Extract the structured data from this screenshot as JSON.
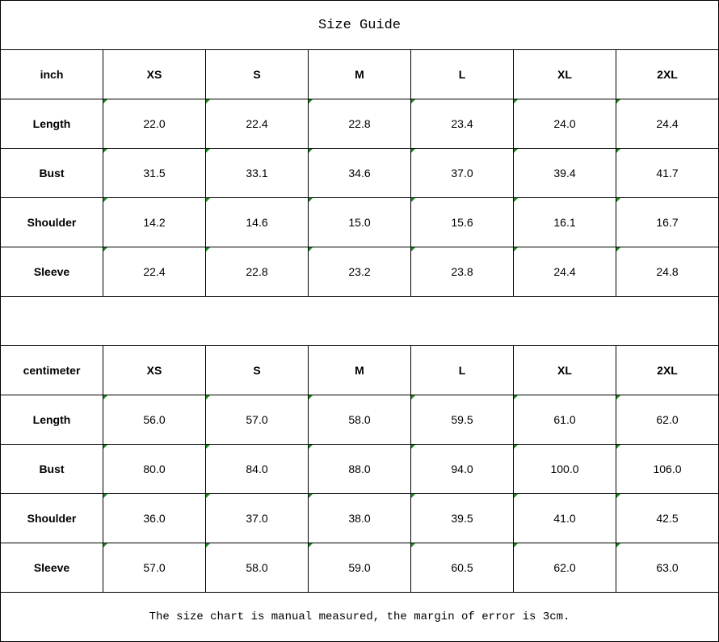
{
  "title": "Size Guide",
  "tables": [
    {
      "unit": "inch",
      "sizes": [
        "XS",
        "S",
        "M",
        "L",
        "XL",
        "2XL"
      ],
      "rows": [
        {
          "label": "Length",
          "values": [
            "22.0",
            "22.4",
            "22.8",
            "23.4",
            "24.0",
            "24.4"
          ]
        },
        {
          "label": "Bust",
          "values": [
            "31.5",
            "33.1",
            "34.6",
            "37.0",
            "39.4",
            "41.7"
          ]
        },
        {
          "label": "Shoulder",
          "values": [
            "14.2",
            "14.6",
            "15.0",
            "15.6",
            "16.1",
            "16.7"
          ]
        },
        {
          "label": "Sleeve",
          "values": [
            "22.4",
            "22.8",
            "23.2",
            "23.8",
            "24.4",
            "24.8"
          ]
        }
      ]
    },
    {
      "unit": "centimeter",
      "sizes": [
        "XS",
        "S",
        "M",
        "L",
        "XL",
        "2XL"
      ],
      "rows": [
        {
          "label": "Length",
          "values": [
            "56.0",
            "57.0",
            "58.0",
            "59.5",
            "61.0",
            "62.0"
          ]
        },
        {
          "label": "Bust",
          "values": [
            "80.0",
            "84.0",
            "88.0",
            "94.0",
            "100.0",
            "106.0"
          ]
        },
        {
          "label": "Shoulder",
          "values": [
            "36.0",
            "37.0",
            "38.0",
            "39.5",
            "41.0",
            "42.5"
          ]
        },
        {
          "label": "Sleeve",
          "values": [
            "57.0",
            "58.0",
            "59.0",
            "60.5",
            "62.0",
            "63.0"
          ]
        }
      ]
    }
  ],
  "note": "The size chart is manual measured, the margin of error is 3cm.",
  "colors": {
    "cell_marker": "#1a8a1a",
    "grid": "#000000"
  }
}
